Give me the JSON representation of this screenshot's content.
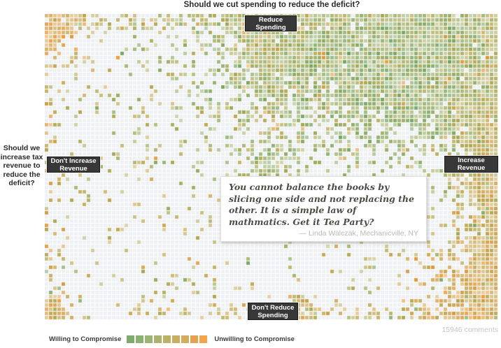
{
  "page": {
    "top_question": "Should we cut spending to reduce the deficit?",
    "left_question": "Should we\nincrease tax\nrevenue to\nreduce the\ndeficit?",
    "comments_count": "15946 comments"
  },
  "axis_labels": {
    "top": "Reduce\nSpending",
    "bottom": "Don't Reduce\nSpending",
    "left": "Don't Increase\nRevenue",
    "right": "Increase\nRevenue"
  },
  "quote": {
    "text": "You cannot balance the books by slicing one side and not  replacing the other.  It is a simple law of mathmatics.  Get it Tea Party?",
    "attribution": "— Linda Walczak, Mechanicville, NY"
  },
  "legend": {
    "left_label": "Willing to Compromise",
    "right_label": "Unwilling to Compromise"
  },
  "chart_data": {
    "type": "heatmap",
    "title": "Should we cut spending to reduce the deficit?",
    "total_comments": 15946,
    "x_axis": {
      "question": "Should we increase tax revenue to reduce the deficit?",
      "left_extreme": "Don't Increase Revenue",
      "right_extreme": "Increase Revenue"
    },
    "y_axis": {
      "question": "Should we cut spending to reduce the deficit?",
      "top_extreme": "Reduce Spending",
      "bottom_extreme": "Don't Reduce Spending"
    },
    "color_encoding": {
      "low_label": "Willing to Compromise",
      "high_label": "Unwilling to Compromise",
      "palette": [
        "#7cab6d",
        "#8bb173",
        "#9bb474",
        "#abb46e",
        "#bab267",
        "#c8ae60",
        "#d5ab5e",
        "#e2a351",
        "#f4a44c"
      ]
    },
    "grid": {
      "cols": 108,
      "rows": 73,
      "cell": 5,
      "gap": 1,
      "empty_color": "#eef1f3",
      "seed": 1337
    },
    "base_density": 0.075,
    "base_color_mean": 4.5,
    "clusters": [
      {
        "name": "top-right-mass",
        "u": 0.82,
        "v": 0.12,
        "su": 0.27,
        "sv": 0.21,
        "amp": 1.15,
        "color": 2.0
      },
      {
        "name": "right-edge-strip",
        "u": 1.0,
        "v": 0.5,
        "su": 0.05,
        "sv": 0.5,
        "amp": 0.85,
        "color": 5.5
      },
      {
        "name": "bottom-right-corner",
        "u": 1.0,
        "v": 0.97,
        "su": 0.09,
        "sv": 0.13,
        "amp": 0.95,
        "color": 6.5
      },
      {
        "name": "top-left-corner",
        "u": 0.0,
        "v": 0.0,
        "su": 0.055,
        "sv": 0.075,
        "amp": 1.05,
        "color": 7.2
      },
      {
        "name": "bottom-left-corner",
        "u": 0.0,
        "v": 1.0,
        "su": 0.035,
        "sv": 0.045,
        "amp": 1.0,
        "color": 6.0
      },
      {
        "name": "center-cluster",
        "u": 0.495,
        "v": 0.49,
        "su": 0.034,
        "sv": 0.04,
        "amp": 0.9,
        "color": 2.3
      },
      {
        "name": "top-edge-strip",
        "u": 0.45,
        "v": 0.0,
        "su": 0.45,
        "sv": 0.03,
        "amp": 0.45,
        "color": 4.5
      },
      {
        "name": "below-reduce-spending",
        "u": 0.5,
        "v": 0.09,
        "su": 0.05,
        "sv": 0.06,
        "amp": 0.7,
        "color": 4.3
      },
      {
        "name": "center-top-streak",
        "u": 0.5,
        "v": 0.22,
        "su": 0.03,
        "sv": 0.1,
        "amp": 0.3,
        "color": 4.0
      },
      {
        "name": "left-edge-strip",
        "u": 0.0,
        "v": 0.5,
        "su": 0.018,
        "sv": 0.45,
        "amp": 0.22,
        "color": 6.0
      },
      {
        "name": "bottom-edge-strip",
        "u": 0.5,
        "v": 1.0,
        "su": 0.4,
        "sv": 0.025,
        "amp": 0.3,
        "color": 5.2
      },
      {
        "name": "bottom-center-patch",
        "u": 0.56,
        "v": 0.97,
        "su": 0.04,
        "sv": 0.04,
        "amp": 0.45,
        "color": 5.0
      }
    ]
  }
}
